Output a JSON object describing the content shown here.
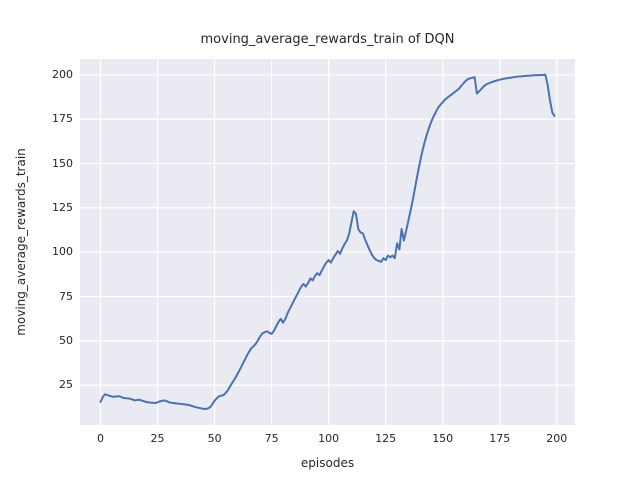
{
  "figure": {
    "background": "#ffffff"
  },
  "chart_data": {
    "type": "line",
    "title": "moving_average_rewards_train of DQN",
    "xlabel": "episodes",
    "ylabel": "moving_average_rewards_train",
    "x_ticks": [
      0,
      25,
      50,
      75,
      100,
      125,
      150,
      175,
      200
    ],
    "y_ticks": [
      25,
      50,
      75,
      100,
      125,
      150,
      175,
      200
    ],
    "xlim": [
      -9,
      208
    ],
    "ylim": [
      2.5,
      209
    ],
    "grid": true,
    "legend_position": "none",
    "style": {
      "plot_bg": "#eaeaf2",
      "grid_color": "#ffffff",
      "line_color": "#4c72b0",
      "text_color": "#262626",
      "line_width": 2
    },
    "series": [
      {
        "name": "DQN",
        "x": {
          "start": 0,
          "step": 1
        },
        "values": [
          15.5,
          18.3,
          19.8,
          19.4,
          18.9,
          18.6,
          18.4,
          18.6,
          18.8,
          18.3,
          17.8,
          17.6,
          17.5,
          17.3,
          16.9,
          16.4,
          16.6,
          16.8,
          16.3,
          15.9,
          15.5,
          15.3,
          15.1,
          15.0,
          14.9,
          15.3,
          15.8,
          16.1,
          16.4,
          15.9,
          15.3,
          15.1,
          14.9,
          14.7,
          14.6,
          14.4,
          14.3,
          14.1,
          13.9,
          13.7,
          13.2,
          12.8,
          12.5,
          12.2,
          11.9,
          11.7,
          11.5,
          11.8,
          12.5,
          14.2,
          16.2,
          17.6,
          18.7,
          19.1,
          19.4,
          20.8,
          22.5,
          24.8,
          26.8,
          28.8,
          31.2,
          33.6,
          36.2,
          38.6,
          41.2,
          43.6,
          45.6,
          46.9,
          48.2,
          50.2,
          52.6,
          54.2,
          54.9,
          55.3,
          54.6,
          53.9,
          55.6,
          58.2,
          60.6,
          62.4,
          60.2,
          62.3,
          65.6,
          68.2,
          70.6,
          73.2,
          75.6,
          78.2,
          80.6,
          82.1,
          80.6,
          82.6,
          85.2,
          84.1,
          86.6,
          88.1,
          87.1,
          89.6,
          92.1,
          94.1,
          95.6,
          94.1,
          96.6,
          98.6,
          100.6,
          99.1,
          102.1,
          104.6,
          106.6,
          110.6,
          117.1,
          123.1,
          121.6,
          113.1,
          111.1,
          110.6,
          107.1,
          104.1,
          101.1,
          98.6,
          96.6,
          95.6,
          95.1,
          94.6,
          96.6,
          95.6,
          98.1,
          97.1,
          98.1,
          96.6,
          105.1,
          101.6,
          113.1,
          106.6,
          112.1,
          118.1,
          124.1,
          130.1,
          137.1,
          144.1,
          150.6,
          156.6,
          161.6,
          166.1,
          170.1,
          173.6,
          176.6,
          179.1,
          181.6,
          183.1,
          184.6,
          186.1,
          187.1,
          188.1,
          189.1,
          190.1,
          191.1,
          192.1,
          193.6,
          195.1,
          196.6,
          197.6,
          198.1,
          198.4,
          198.8,
          189.5,
          190.8,
          192.2,
          193.6,
          194.6,
          195.2,
          195.7,
          196.2,
          196.6,
          197.0,
          197.3,
          197.6,
          197.9,
          198.1,
          198.3,
          198.5,
          198.7,
          198.9,
          199.1,
          199.2,
          199.3,
          199.4,
          199.5,
          199.6,
          199.7,
          199.8,
          199.9,
          199.9,
          200.0,
          200.0,
          200.2,
          194.5,
          186.0,
          179.0,
          176.8
        ]
      }
    ]
  }
}
